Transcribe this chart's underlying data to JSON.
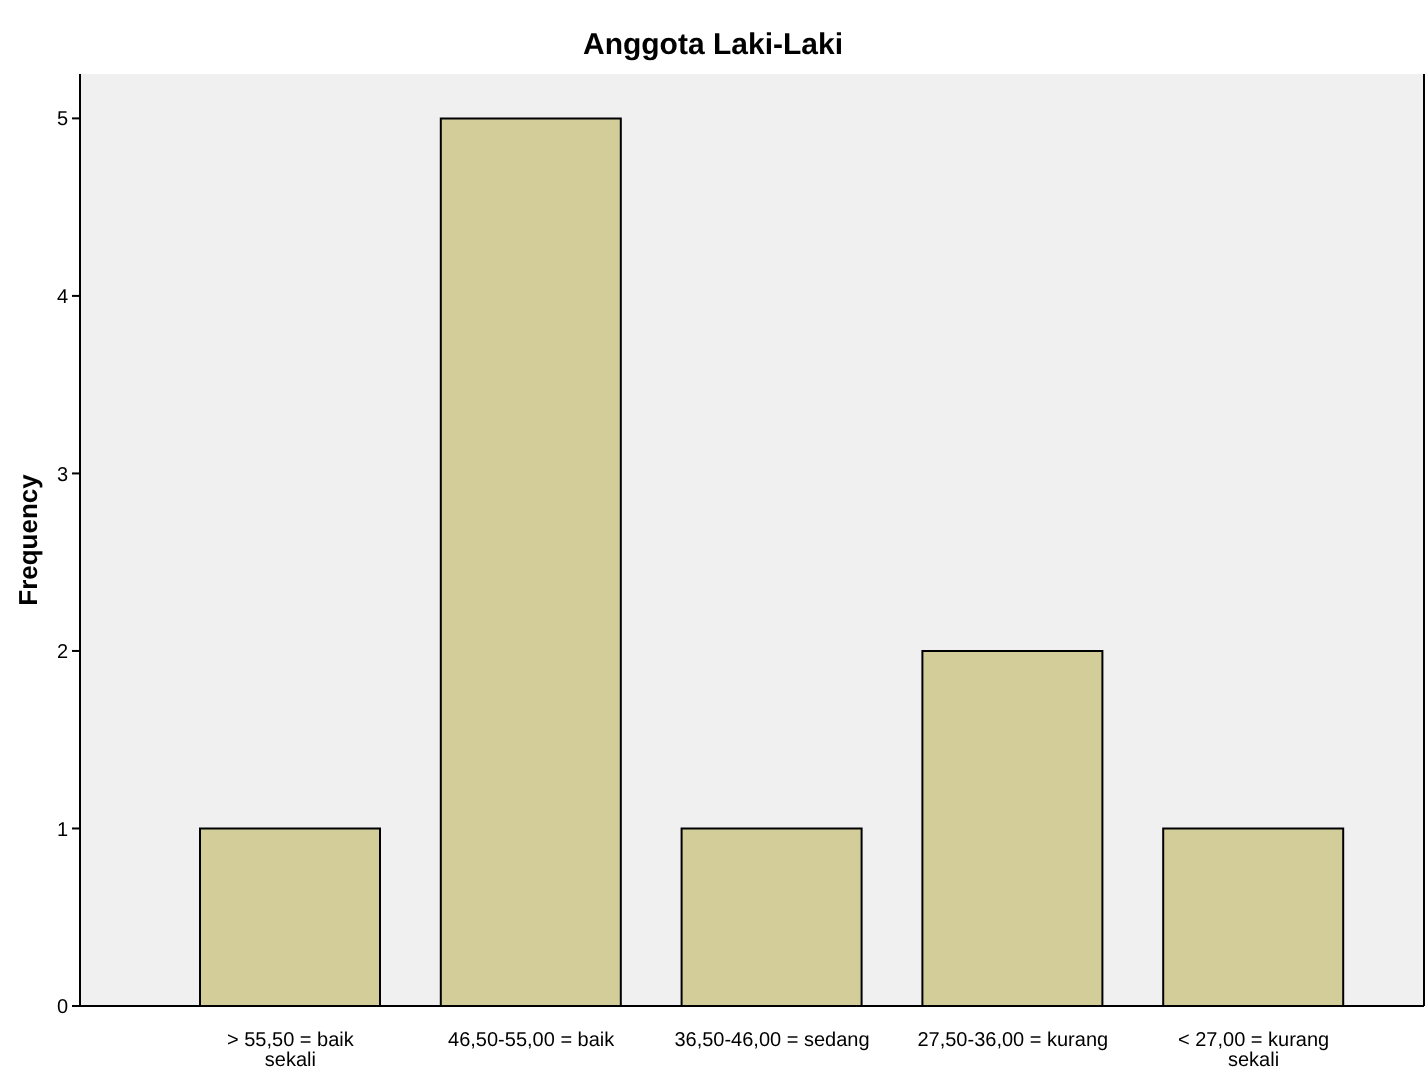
{
  "chart_data": {
    "type": "bar",
    "title": "Anggota Laki-Laki",
    "ylabel": "Frequency",
    "categories": [
      "> 55,50 = baik sekali",
      "46,50-55,00 = baik",
      "36,50-46,00 = sedang",
      "27,50-36,00 = kurang",
      "< 27,00 = kurang sekali"
    ],
    "values": [
      1,
      5,
      1,
      2,
      1
    ],
    "color": "#d3ce99",
    "ylim": [
      0,
      5.25
    ],
    "yticks": [
      0,
      1,
      2,
      3,
      4,
      5
    ],
    "grid": false
  }
}
